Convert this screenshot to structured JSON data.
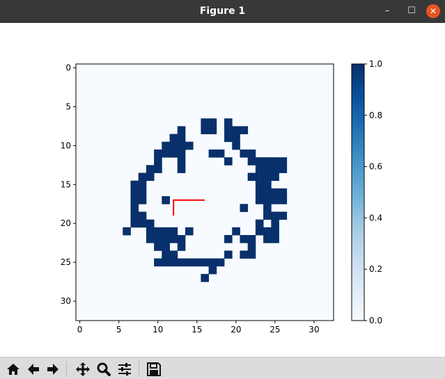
{
  "window": {
    "title": "Figure 1"
  },
  "controls": {
    "minimize": "–",
    "maximize": "☐",
    "close": "✕"
  },
  "toolbar": {
    "buttons": [
      {
        "name": "home",
        "icon": "home-icon"
      },
      {
        "name": "back",
        "icon": "arrow-left-icon"
      },
      {
        "name": "forward",
        "icon": "arrow-right-icon"
      },
      {
        "name": "pan",
        "icon": "move-icon"
      },
      {
        "name": "zoom",
        "icon": "magnifier-icon"
      },
      {
        "name": "configure",
        "icon": "sliders-icon"
      },
      {
        "name": "save",
        "icon": "floppy-icon"
      }
    ]
  },
  "chart_data": {
    "type": "heatmap",
    "colormap": "Blues",
    "grid_size": [
      33,
      33
    ],
    "xlim": [
      -0.5,
      32.5
    ],
    "ylim": [
      32.5,
      -0.5
    ],
    "xticks": [
      0,
      5,
      10,
      15,
      20,
      25,
      30
    ],
    "yticks": [
      0,
      5,
      10,
      15,
      20,
      25,
      30
    ],
    "colorbar": {
      "min": 0.0,
      "max": 1.0,
      "ticks": [
        "0.0",
        "0.2",
        "0.4",
        "0.6",
        "0.8",
        "1.0"
      ]
    },
    "occupied_cells": {
      "7": [
        16,
        17,
        19
      ],
      "8": [
        13,
        16,
        17,
        19,
        20,
        21
      ],
      "9": [
        12,
        13,
        19,
        20
      ],
      "10": [
        11,
        12,
        13,
        14,
        20
      ],
      "11": [
        10,
        11,
        12,
        13,
        17,
        18,
        21,
        22
      ],
      "12": [
        10,
        13,
        19,
        22,
        23,
        24,
        25,
        26
      ],
      "13": [
        9,
        10,
        13,
        23,
        24,
        25,
        26
      ],
      "14": [
        8,
        9,
        22,
        23,
        24,
        25
      ],
      "15": [
        7,
        8,
        23,
        24
      ],
      "16": [
        7,
        8,
        23,
        24,
        25,
        26
      ],
      "17": [
        7,
        8,
        11,
        23,
        24,
        25,
        26
      ],
      "18": [
        7,
        21,
        24
      ],
      "19": [
        7,
        8,
        24,
        25,
        26
      ],
      "20": [
        7,
        8,
        9,
        23,
        25
      ],
      "21": [
        6,
        9,
        10,
        11,
        12,
        14,
        20,
        23,
        24,
        25
      ],
      "22": [
        9,
        10,
        11,
        12,
        13,
        19,
        21,
        22,
        24,
        25
      ],
      "23": [
        10,
        11,
        13,
        22
      ],
      "24": [
        11,
        12,
        19,
        21,
        22
      ],
      "25": [
        10,
        11,
        12,
        13,
        14,
        15,
        16,
        17,
        18
      ],
      "26": [
        17
      ],
      "27": [
        16
      ]
    },
    "path": {
      "color": "#ff0000",
      "points": [
        [
          12,
          19
        ],
        [
          12,
          17
        ],
        [
          16,
          17
        ]
      ]
    }
  }
}
